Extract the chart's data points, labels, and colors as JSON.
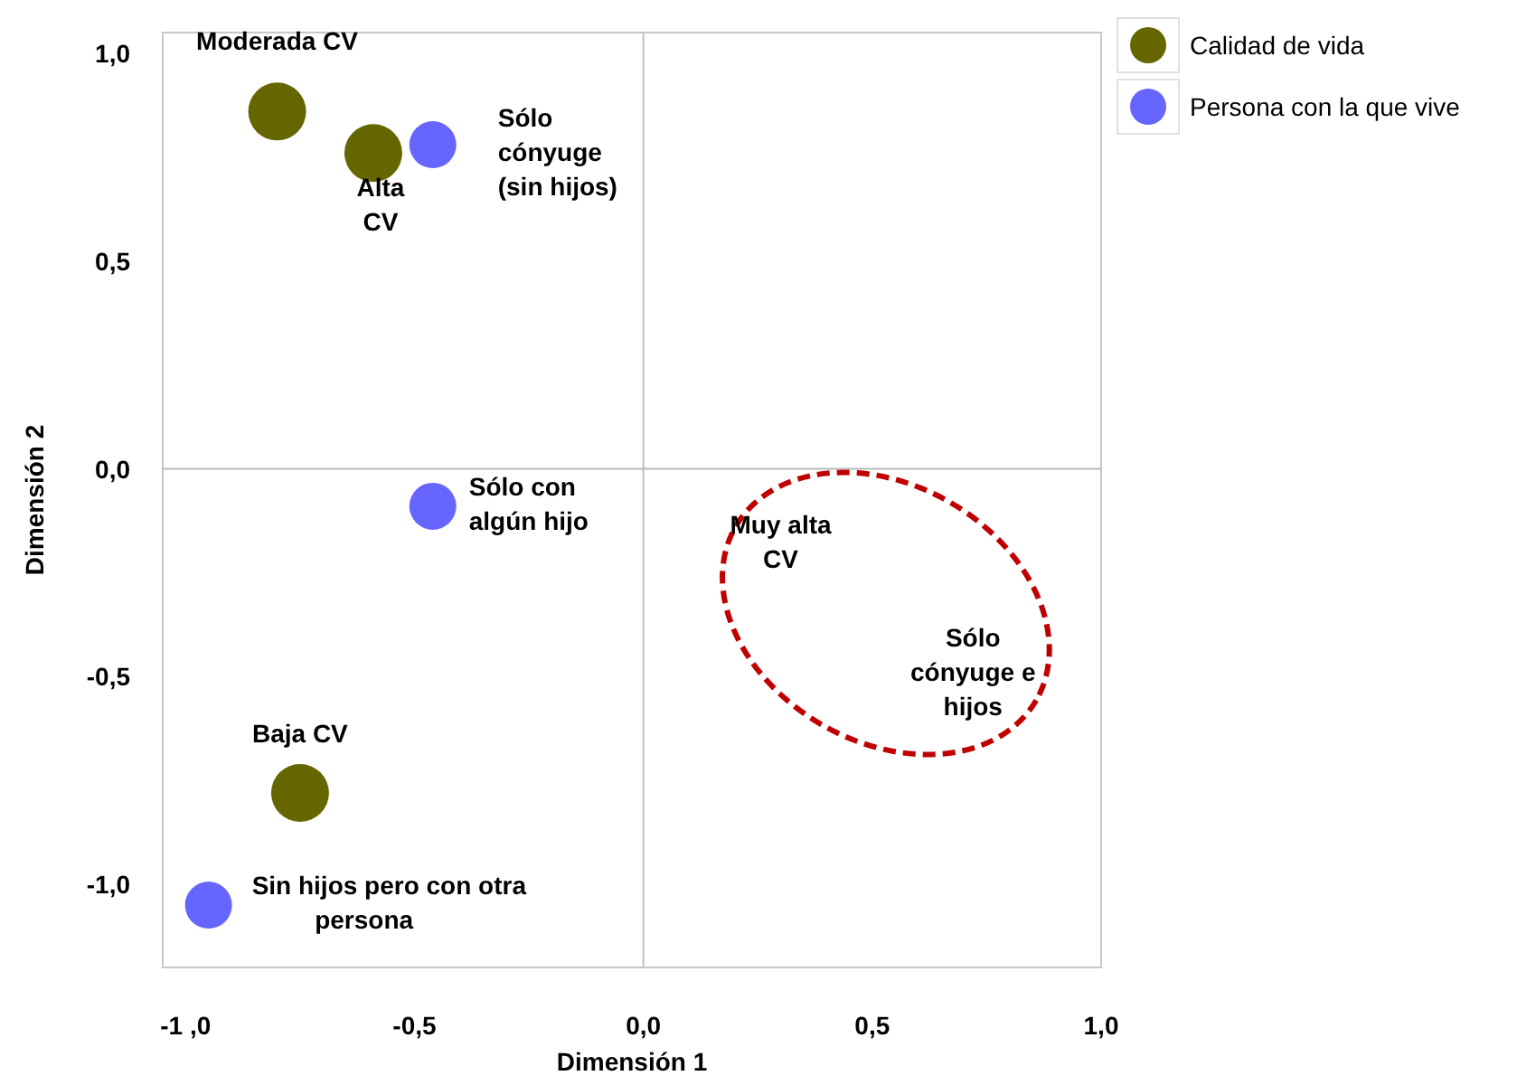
{
  "chart_data": {
    "type": "scatter",
    "xlabel": "Dimensión 1",
    "ylabel": "Dimensión 2",
    "xlim": [
      -1.05,
      1.0
    ],
    "ylim": [
      -1.2,
      1.05
    ],
    "xticks": [
      {
        "value": -1,
        "label": "-1 ,0"
      },
      {
        "value": -0.5,
        "label": "-0,5"
      },
      {
        "value": 0,
        "label": "0,0"
      },
      {
        "value": 0.5,
        "label": "0,5"
      },
      {
        "value": 1,
        "label": "1,0"
      }
    ],
    "yticks": [
      {
        "value": -1,
        "label": "-1,0"
      },
      {
        "value": -0.5,
        "label": "-0,5"
      },
      {
        "value": 0,
        "label": "0,0"
      },
      {
        "value": 0.5,
        "label": "0,5"
      },
      {
        "value": 1,
        "label": "1,0"
      }
    ],
    "grid": false,
    "legend": "top right",
    "marker": "circle",
    "ref_lines": [
      {
        "axis": "x",
        "value": 0,
        "color": "#c0c0c0"
      },
      {
        "axis": "y",
        "value": 0,
        "color": "#b8b8b8"
      }
    ],
    "series": [
      {
        "name": "Calidad de vida",
        "color": "#666600",
        "x": [
          -0.8,
          -0.59,
          -0.75
        ],
        "values": [
          0.86,
          0.76,
          -0.78
        ]
      },
      {
        "name": "Persona con la que vive",
        "color": "#6666ff",
        "x": [
          -0.46,
          -0.46,
          -0.95
        ],
        "values": [
          0.78,
          -0.09,
          -1.05
        ]
      }
    ],
    "annotations": [
      {
        "text": "Moderada CV",
        "x": -0.8,
        "y": 0.86
      },
      {
        "text": "Alta\nCV",
        "x": -0.59,
        "y": 0.76
      },
      {
        "text": "Sólo\ncónyuge\n(sin hijos)",
        "x": -0.46,
        "y": 0.78
      },
      {
        "text": "Sólo con\nalgún hijo",
        "x": -0.46,
        "y": -0.09
      },
      {
        "text": "Baja CV",
        "x": -0.75,
        "y": -0.78
      },
      {
        "text": "Sin hijos pero con otra\npersona",
        "x": -0.95,
        "y": -1.05
      },
      "Muy alta\nCV",
      "Sólo\ncónyuge e\nhijos"
    ]
  }
}
